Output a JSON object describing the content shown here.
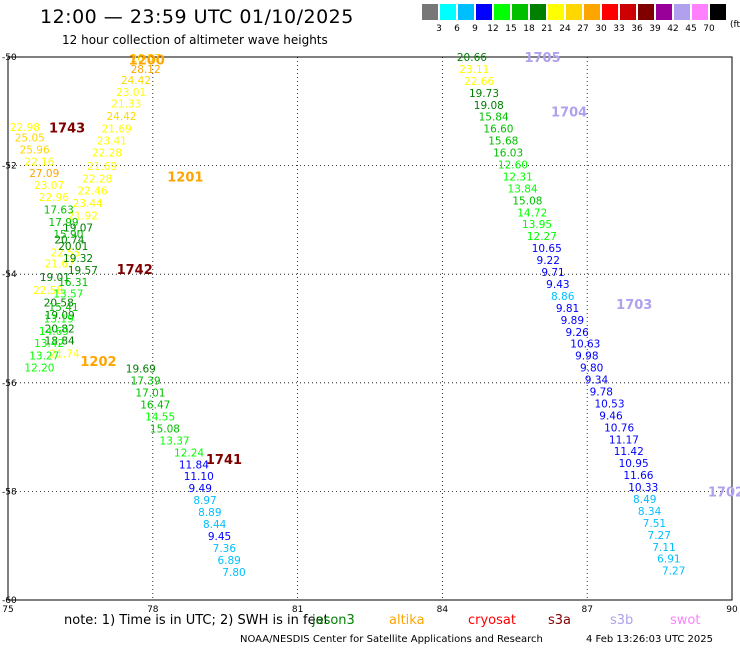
{
  "title": "12:00 — 23:59 UTC 01/10/2025",
  "subtitle": "12 hour collection of altimeter wave heights",
  "color_scale": {
    "colors": [
      "#777777",
      "#00ffff",
      "#00bfff",
      "#0000ff",
      "#00ff00",
      "#00c000",
      "#008000",
      "#ffff00",
      "#ffd700",
      "#ffa500",
      "#ff0000",
      "#cc0000",
      "#800000",
      "#990099",
      "#b0a0ee",
      "#ff80ff",
      "#000000"
    ],
    "labels": [
      "3",
      "6",
      "9",
      "12",
      "15",
      "18",
      "21",
      "24",
      "27",
      "30",
      "33",
      "36",
      "39",
      "42",
      "45",
      "70"
    ],
    "unit": "(ft)"
  },
  "note": "note:  1) Time is in UTC;  2) SWH is in feet",
  "satellites": [
    {
      "name": "jason3",
      "color": "#008000"
    },
    {
      "name": "altika",
      "color": "#ffa500"
    },
    {
      "name": "cryosat",
      "color": "#ff0000"
    },
    {
      "name": "s3a",
      "color": "#800000"
    },
    {
      "name": "s3b",
      "color": "#b0a0ee"
    },
    {
      "name": "swot",
      "color": "#ff80ff"
    }
  ],
  "footer": "NOAA/NESDIS Center for Satellite Applications and Research",
  "timestamp": "4 Feb 13:26:03 UTC 2025",
  "chart_data": {
    "type": "scatter",
    "xlim": [
      75,
      90
    ],
    "ylim": [
      -60,
      -50
    ],
    "x_ticks": [
      "75",
      "78",
      "81",
      "84",
      "87",
      "90"
    ],
    "y_ticks": [
      "-50",
      "-52",
      "-54",
      "-56",
      "-58",
      "-60"
    ],
    "grid": true,
    "time_labels": [
      {
        "label": "1200",
        "x": 77.5,
        "y": -50.05,
        "color": "#ffa500"
      },
      {
        "label": "1201",
        "x": 78.3,
        "y": -52.2,
        "color": "#ffa500"
      },
      {
        "label": "1202",
        "x": 76.5,
        "y": -55.6,
        "color": "#ffa500"
      },
      {
        "label": "1743",
        "x": 75.85,
        "y": -51.3,
        "color": "#800000"
      },
      {
        "label": "1742",
        "x": 77.25,
        "y": -53.9,
        "color": "#800000"
      },
      {
        "label": "1741",
        "x": 79.1,
        "y": -57.4,
        "color": "#800000"
      },
      {
        "label": "1705",
        "x": 85.7,
        "y": -50.0,
        "color": "#b0a0ee"
      },
      {
        "label": "1704",
        "x": 86.25,
        "y": -51.0,
        "color": "#b0a0ee"
      },
      {
        "label": "1703",
        "x": 87.6,
        "y": -54.55,
        "color": "#b0a0ee"
      },
      {
        "label": "1702",
        "x": 89.5,
        "y": -58.0,
        "color": "#b0a0ee"
      }
    ],
    "series": [
      {
        "name": "altika",
        "values": [
          [
            77.54,
            -50.02,
            "26.57"
          ],
          [
            77.54,
            -50.22,
            "28.12"
          ],
          [
            77.34,
            -50.42,
            "24.42"
          ],
          [
            77.24,
            -50.64,
            "23.01"
          ],
          [
            77.14,
            -50.86,
            "21.33"
          ],
          [
            77.04,
            -51.09,
            "24.42"
          ],
          [
            76.94,
            -51.32,
            "21.69"
          ],
          [
            76.84,
            -51.54,
            "23.41"
          ],
          [
            76.74,
            -51.76,
            "22.28"
          ],
          [
            76.64,
            -52.01,
            "21.69"
          ],
          [
            76.54,
            -52.24,
            "22.28"
          ],
          [
            76.44,
            -52.46,
            "22.46"
          ],
          [
            76.34,
            -52.69,
            "23.44"
          ],
          [
            76.24,
            -52.92,
            "21.92"
          ],
          [
            76.14,
            -53.14,
            "19.07"
          ],
          [
            75.96,
            -53.36,
            "20.74"
          ],
          [
            75.88,
            -53.6,
            "22.55"
          ],
          [
            75.76,
            -53.8,
            "21.67"
          ],
          [
            75.66,
            -54.05,
            "19.01"
          ],
          [
            75.52,
            -54.29,
            "22.58"
          ],
          [
            75.74,
            -54.52,
            "20.58"
          ],
          [
            75.76,
            -54.75,
            "19.09"
          ],
          [
            75.76,
            -55.0,
            "20.82"
          ],
          [
            75.76,
            -55.22,
            "18.84"
          ],
          [
            75.86,
            -55.46,
            "21.74"
          ]
        ]
      },
      {
        "name": "s3a",
        "values": [
          [
            75.04,
            -51.29,
            "22.98"
          ],
          [
            75.14,
            -51.48,
            "25.05"
          ],
          [
            75.24,
            -51.7,
            "25.96"
          ],
          [
            75.34,
            -51.92,
            "22.16"
          ],
          [
            75.44,
            -52.14,
            "27.09"
          ],
          [
            75.54,
            -52.36,
            "23.07"
          ],
          [
            75.64,
            -52.58,
            "22.96"
          ],
          [
            75.74,
            -52.81,
            "17.63"
          ],
          [
            75.84,
            -53.04,
            "17.99"
          ],
          [
            75.94,
            -53.26,
            "15.90"
          ],
          [
            76.04,
            -53.48,
            "20.01"
          ],
          [
            76.14,
            -53.7,
            "19.32"
          ],
          [
            76.24,
            -53.92,
            "19.57"
          ],
          [
            76.04,
            -54.14,
            "16.31"
          ],
          [
            75.94,
            -54.36,
            "13.57"
          ],
          [
            75.84,
            -54.6,
            "15.41"
          ],
          [
            75.74,
            -54.82,
            "13.19"
          ],
          [
            75.64,
            -55.05,
            "14.69"
          ],
          [
            75.54,
            -55.27,
            "13.42"
          ],
          [
            75.44,
            -55.5,
            "13.27"
          ],
          [
            75.34,
            -55.72,
            "12.20"
          ],
          [
            77.44,
            -55.74,
            "19.69"
          ],
          [
            77.54,
            -55.96,
            "17.39"
          ],
          [
            77.64,
            -56.18,
            "17.01"
          ],
          [
            77.74,
            -56.4,
            "16.47"
          ],
          [
            77.84,
            -56.62,
            "14.55"
          ],
          [
            77.94,
            -56.84,
            "15.08"
          ],
          [
            78.14,
            -57.06,
            "13.37"
          ],
          [
            78.44,
            -57.28,
            "12.24"
          ],
          [
            78.54,
            -57.5,
            "11.84"
          ],
          [
            78.64,
            -57.72,
            "11.10"
          ],
          [
            78.74,
            -57.94,
            "9.49"
          ],
          [
            78.84,
            -58.16,
            "8.97"
          ],
          [
            78.94,
            -58.38,
            "8.89"
          ],
          [
            79.04,
            -58.6,
            "8.44"
          ],
          [
            79.14,
            -58.82,
            "9.45"
          ],
          [
            79.24,
            -59.04,
            "7.36"
          ],
          [
            79.34,
            -59.26,
            "6.89"
          ],
          [
            79.44,
            -59.48,
            "7.80"
          ]
        ]
      },
      {
        "name": "s3b",
        "values": [
          [
            84.3,
            -50.0,
            "20.66"
          ],
          [
            84.35,
            -50.22,
            "23.11"
          ],
          [
            84.45,
            -50.44,
            "22.66"
          ],
          [
            84.55,
            -50.66,
            "19.73"
          ],
          [
            84.65,
            -50.88,
            "19.08"
          ],
          [
            84.75,
            -51.1,
            "15.84"
          ],
          [
            84.85,
            -51.32,
            "16.60"
          ],
          [
            84.95,
            -51.54,
            "15.68"
          ],
          [
            85.05,
            -51.76,
            "16.03"
          ],
          [
            85.15,
            -51.98,
            "12.60"
          ],
          [
            85.25,
            -52.2,
            "12.31"
          ],
          [
            85.35,
            -52.42,
            "13.84"
          ],
          [
            85.45,
            -52.64,
            "15.08"
          ],
          [
            85.55,
            -52.86,
            "14.72"
          ],
          [
            85.65,
            -53.08,
            "13.95"
          ],
          [
            85.75,
            -53.3,
            "12.27"
          ],
          [
            85.85,
            -53.52,
            "10.65"
          ],
          [
            85.95,
            -53.74,
            "9.22"
          ],
          [
            86.05,
            -53.96,
            "9.71"
          ],
          [
            86.15,
            -54.18,
            "9.43"
          ],
          [
            86.25,
            -54.4,
            "8.86"
          ],
          [
            86.35,
            -54.62,
            "9.81"
          ],
          [
            86.45,
            -54.84,
            "9.89"
          ],
          [
            86.55,
            -55.06,
            "9.26"
          ],
          [
            86.65,
            -55.28,
            "10.63"
          ],
          [
            86.75,
            -55.5,
            "9.98"
          ],
          [
            86.85,
            -55.72,
            "9.80"
          ],
          [
            86.95,
            -55.94,
            "9.34"
          ],
          [
            87.05,
            -56.16,
            "9.78"
          ],
          [
            87.15,
            -56.38,
            "10.53"
          ],
          [
            87.25,
            -56.6,
            "9.46"
          ],
          [
            87.35,
            -56.82,
            "10.76"
          ],
          [
            87.45,
            -57.04,
            "11.17"
          ],
          [
            87.55,
            -57.26,
            "11.42"
          ],
          [
            87.65,
            -57.48,
            "10.95"
          ],
          [
            87.75,
            -57.7,
            "11.66"
          ],
          [
            87.85,
            -57.92,
            "10.33"
          ],
          [
            87.95,
            -58.14,
            "8.49"
          ],
          [
            88.05,
            -58.36,
            "8.34"
          ],
          [
            88.15,
            -58.58,
            "7.51"
          ],
          [
            88.25,
            -58.8,
            "7.27"
          ],
          [
            88.35,
            -59.02,
            "7.11"
          ],
          [
            88.45,
            -59.24,
            "6.91"
          ],
          [
            88.55,
            -59.46,
            "7.27"
          ]
        ]
      }
    ]
  }
}
